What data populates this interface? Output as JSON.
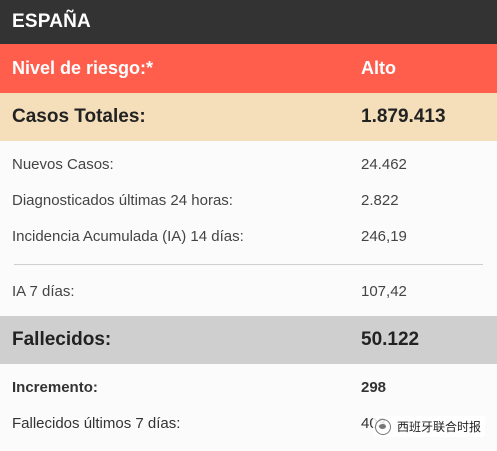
{
  "header": {
    "title": "ESPAÑA"
  },
  "risk": {
    "label": "Nivel de riesgo:*",
    "value": "Alto"
  },
  "totals": {
    "label": "Casos Totales:",
    "value": "1.879.413"
  },
  "details": [
    {
      "label": "Nuevos Casos:",
      "value": "24.462"
    },
    {
      "label": "Diagnosticados últimas 24 horas:",
      "value": "2.822"
    },
    {
      "label": "Incidencia Acumulada (IA) 14 días:",
      "value": "246,19"
    }
  ],
  "ia7": {
    "label": "IA 7 días:",
    "value": "107,42"
  },
  "deaths": {
    "label": "Fallecidos:",
    "value": "50.122"
  },
  "death_details": [
    {
      "label": "Incremento:",
      "value": "298"
    },
    {
      "label": "Fallecidos últimos 7 días:",
      "value": "403"
    }
  ],
  "watermark": {
    "text": "西班牙联合时报",
    "icon": "wechat-logo-icon"
  },
  "colors": {
    "header_bg": "#333333",
    "risk_bg": "#ff5e4d",
    "totals_bg": "#f5dfbb",
    "deaths_bg": "#cfcfcf"
  }
}
